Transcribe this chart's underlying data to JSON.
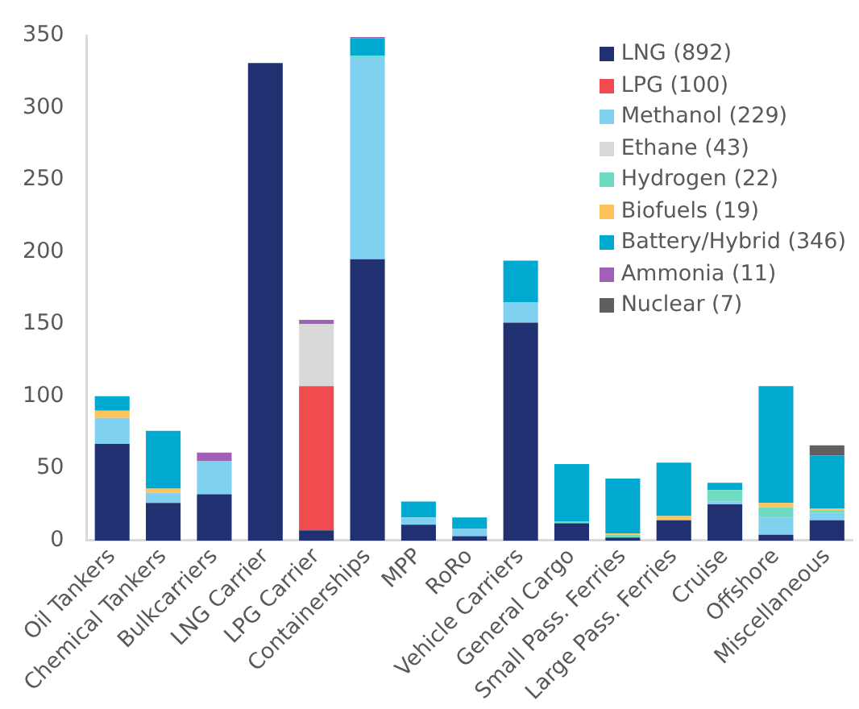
{
  "chart_data": {
    "type": "bar",
    "stacked": true,
    "legend": "top right",
    "grid": false,
    "categories": [
      "Oil Tankers",
      "Chemical Tankers",
      "Bulkcarriers",
      "LNG Carrier",
      "LPG Carrier",
      "Containerships",
      "MPP",
      "RoRo",
      "Vehicle Carriers",
      "General Cargo",
      "Small Pass. Ferries",
      "Large Pass. Ferries",
      "Cruise",
      "Offshore",
      "Miscellaneous"
    ],
    "ylim": [
      0,
      350
    ],
    "yticks": [
      0,
      50,
      100,
      150,
      200,
      250,
      300,
      350
    ],
    "series": [
      {
        "name": "LNG (892)",
        "color": "#203070",
        "values": [
          67,
          26,
          32,
          331,
          7,
          195,
          11,
          3,
          151,
          12,
          2,
          14,
          25,
          4,
          14
        ]
      },
      {
        "name": "LPG (100)",
        "color": "#f04b4e",
        "values": [
          null,
          null,
          null,
          null,
          100,
          null,
          null,
          null,
          null,
          null,
          null,
          null,
          null,
          null,
          null
        ]
      },
      {
        "name": "Methanol (229)",
        "color": "#80d0f0",
        "values": [
          18,
          7,
          23,
          null,
          null,
          140,
          5,
          5,
          14,
          null,
          null,
          null,
          2,
          12,
          5
        ]
      },
      {
        "name": "Ethane (43)",
        "color": "#d9d9d9",
        "values": [
          null,
          null,
          null,
          null,
          43,
          null,
          null,
          null,
          null,
          null,
          null,
          null,
          null,
          null,
          null
        ]
      },
      {
        "name": "Hydrogen (22)",
        "color": "#6ddcc0",
        "values": [
          null,
          null,
          null,
          null,
          null,
          1,
          null,
          null,
          null,
          1,
          2,
          null,
          8,
          7,
          2
        ]
      },
      {
        "name": "Biofuels (19)",
        "color": "#fec35a",
        "values": [
          5,
          3,
          null,
          null,
          null,
          null,
          null,
          null,
          null,
          null,
          1,
          3,
          null,
          3,
          1
        ]
      },
      {
        "name": "Battery/Hybrid (346)",
        "color": "#00a9d0",
        "values": [
          10,
          40,
          null,
          null,
          null,
          12,
          11,
          8,
          29,
          40,
          38,
          37,
          5,
          81,
          37
        ]
      },
      {
        "name": "Ammonia (11)",
        "color": "#a060b8",
        "values": [
          null,
          null,
          6,
          null,
          3,
          1,
          null,
          null,
          null,
          null,
          null,
          null,
          null,
          null,
          null
        ]
      },
      {
        "name": "Nuclear (7)",
        "color": "#5f5f5f",
        "values": [
          null,
          null,
          null,
          null,
          null,
          null,
          null,
          null,
          null,
          null,
          null,
          null,
          null,
          null,
          7
        ]
      }
    ]
  }
}
